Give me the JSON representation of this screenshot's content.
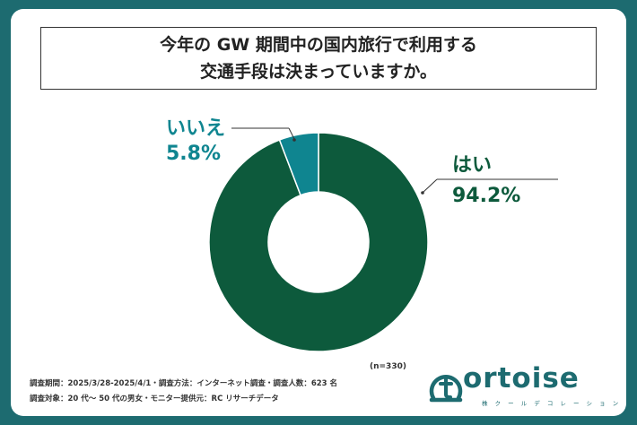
{
  "chart_data": {
    "type": "pie",
    "title_lines": [
      "今年の GW 期間中の国内旅行で利用する",
      "交通手段は決まっていますか。"
    ],
    "slices": [
      {
        "label": "はい",
        "value": 94.2,
        "value_text": "94.2%",
        "color": "#0d5a3c"
      },
      {
        "label": "いいえ",
        "value": 5.8,
        "value_text": "5.8%",
        "color": "#0f8590"
      }
    ],
    "sample_size": "(n=330)"
  },
  "notes": {
    "line1": "調査期間：2025/3/28-2025/4/1・調査方法：インターネット調査・調査人数：623 名",
    "line2": "調査対象：20 代～ 50 代の男女・モニター提供元：RC リサーチデータ"
  },
  "logo": {
    "word": "ortoise",
    "sub": "株 ク ー ル デ コ レ ー シ ョ ン"
  }
}
